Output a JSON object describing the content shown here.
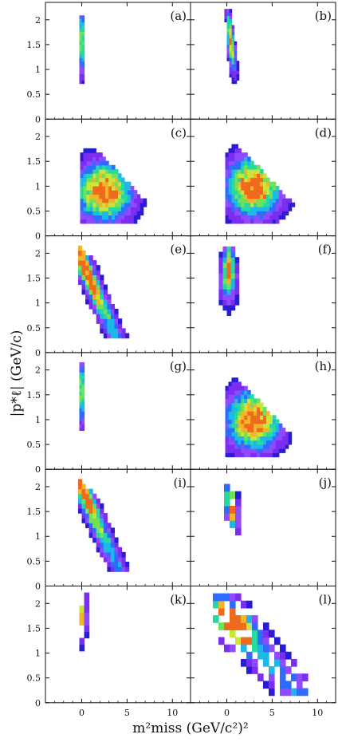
{
  "chart_data": {
    "type": "heatmap",
    "description_axes": {
      "xlabel": "m²miss (GeV/c²)²",
      "ylabel": "|p*ℓ| (GeV/c)",
      "xlim": [
        -4,
        12
      ],
      "ylim": [
        0,
        2.35
      ],
      "xticks": [
        0,
        5,
        10
      ],
      "yticks": [
        0,
        0.5,
        1,
        1.5,
        2
      ],
      "ytick_labels": [
        "0",
        "0.5",
        "1",
        "1.5",
        "2"
      ]
    },
    "layout": "6 rows × 2 columns, shared axes",
    "panels": [
      {
        "label": "(a)",
        "shape": "narrow",
        "peak_x": 0.0,
        "peak_y": 1.6,
        "ymin": 0.7,
        "ymax": 2.1
      },
      {
        "label": "(b)",
        "shape": "narrow-tilted",
        "peak_x": 0.3,
        "peak_y": 1.6,
        "ymin": 0.75,
        "ymax": 2.2
      },
      {
        "label": "(c)",
        "shape": "triangle",
        "peak_x": 2.5,
        "peak_y": 0.9
      },
      {
        "label": "(d)",
        "shape": "triangle",
        "peak_x": 3.0,
        "peak_y": 1.0
      },
      {
        "label": "(e)",
        "shape": "triangle-narrow",
        "peak_x": 0.9,
        "peak_y": 1.5
      },
      {
        "label": "(f)",
        "shape": "narrow-wide",
        "peak_x": 0.3,
        "peak_y": 1.65
      },
      {
        "label": "(g)",
        "shape": "narrow",
        "peak_x": 0.0,
        "peak_y": 1.6,
        "ymin": 0.8,
        "ymax": 2.15
      },
      {
        "label": "(h)",
        "shape": "triangle",
        "peak_x": 3.0,
        "peak_y": 1.0
      },
      {
        "label": "(i)",
        "shape": "triangle-narrow",
        "peak_x": 0.6,
        "peak_y": 1.75
      },
      {
        "label": "(j)",
        "shape": "sparse-narrow",
        "peak_x": 0.5,
        "peak_y": 1.65
      },
      {
        "label": "(k)",
        "shape": "sparse-spike",
        "peak_x": 0.1,
        "peak_y": 1.8
      },
      {
        "label": "(l)",
        "shape": "sparse-triangle",
        "peak_x": 1.0,
        "peak_y": 1.6
      }
    ],
    "colorscale": [
      "#2a1bd6",
      "#7b2ef0",
      "#8f4bff",
      "#2d6cff",
      "#1db8e8",
      "#27d9a0",
      "#6fe15b",
      "#c9e53a",
      "#f2b42a",
      "#f06a1e"
    ]
  }
}
